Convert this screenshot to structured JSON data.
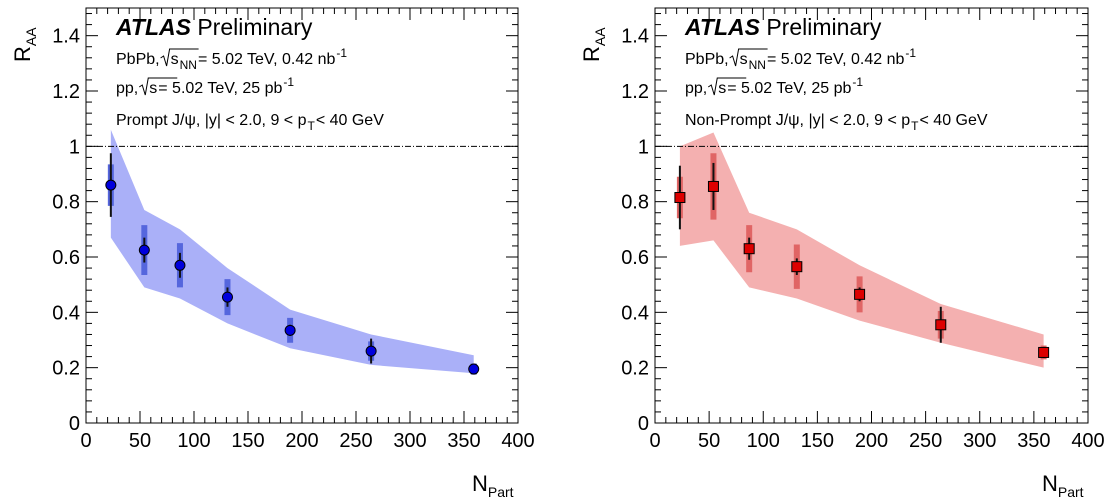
{
  "chart_data": [
    {
      "type": "scatter",
      "brand": "ATLAS",
      "title": "Preliminary",
      "xlabel": "N",
      "xlabel_sub": "Part",
      "ylabel": "R",
      "ylabel_sub": "AA",
      "xlim": [
        0,
        400
      ],
      "ylim": [
        0,
        1.5
      ],
      "xticks": [
        0,
        50,
        100,
        150,
        200,
        250,
        300,
        350,
        400
      ],
      "yticks": [
        0,
        0.2,
        0.4,
        0.6,
        0.8,
        1,
        1.2,
        1.4
      ],
      "ytick_labels": [
        "0",
        "0.2",
        "0.4",
        "0.6",
        "0.8",
        "1",
        "1.2",
        "1.4"
      ],
      "reference_line": 1,
      "annotations": [
        [
          {
            "t": "PbPb, "
          },
          {
            "t": "s",
            "sqrt": true
          },
          {
            "t": "NN",
            "sub": true
          },
          {
            "t": " = 5.02 TeV, 0.42 nb"
          },
          {
            "t": "-1",
            "sup": true
          }
        ],
        [
          {
            "t": "pp, "
          },
          {
            "t": "s",
            "sqrt": true
          },
          {
            "t": " = 5.02 TeV, 25 pb"
          },
          {
            "t": "-1",
            "sup": true
          }
        ],
        [
          {
            "t": "Prompt J/ψ, |y| < 2.0, 9 < p"
          },
          {
            "t": "T",
            "sub": true
          },
          {
            "t": " < 40 GeV"
          }
        ]
      ],
      "marker": "circle",
      "color": "#0000dd",
      "syst_color": "#5566dd",
      "band_color": "#aab0f8",
      "series": [
        {
          "x": [
            23,
            54,
            87,
            131,
            189,
            264,
            359
          ],
          "y": [
            0.86,
            0.625,
            0.57,
            0.455,
            0.335,
            0.26,
            0.195
          ],
          "stat_err": [
            0.115,
            0.045,
            0.045,
            0.035,
            0.02,
            0.045,
            0.02
          ],
          "syst_err": [
            0.075,
            0.09,
            0.08,
            0.065,
            0.045,
            0.035,
            0.02
          ]
        }
      ],
      "band": {
        "x": [
          23,
          54,
          87,
          131,
          189,
          264,
          359
        ],
        "lower": [
          0.67,
          0.49,
          0.45,
          0.36,
          0.27,
          0.21,
          0.18
        ],
        "upper": [
          1.06,
          0.77,
          0.7,
          0.56,
          0.41,
          0.32,
          0.245
        ]
      }
    },
    {
      "type": "scatter",
      "brand": "ATLAS",
      "title": "Preliminary",
      "xlabel": "N",
      "xlabel_sub": "Part",
      "ylabel": "R",
      "ylabel_sub": "AA",
      "xlim": [
        0,
        400
      ],
      "ylim": [
        0,
        1.5
      ],
      "xticks": [
        0,
        50,
        100,
        150,
        200,
        250,
        300,
        350,
        400
      ],
      "yticks": [
        0,
        0.2,
        0.4,
        0.6,
        0.8,
        1,
        1.2,
        1.4
      ],
      "ytick_labels": [
        "0",
        "0.2",
        "0.4",
        "0.6",
        "0.8",
        "1",
        "1.2",
        "1.4"
      ],
      "reference_line": 1,
      "annotations": [
        [
          {
            "t": "PbPb, "
          },
          {
            "t": "s",
            "sqrt": true
          },
          {
            "t": "NN",
            "sub": true
          },
          {
            "t": " = 5.02 TeV, 0.42 nb"
          },
          {
            "t": "-1",
            "sup": true
          }
        ],
        [
          {
            "t": "pp, "
          },
          {
            "t": "s",
            "sqrt": true
          },
          {
            "t": " = 5.02 TeV, 25 pb"
          },
          {
            "t": "-1",
            "sup": true
          }
        ],
        [
          {
            "t": "Non-Prompt J/ψ, |y| < 2.0, 9 < p"
          },
          {
            "t": "T",
            "sub": true
          },
          {
            "t": " < 40 GeV"
          }
        ]
      ],
      "marker": "square",
      "color": "#dd0000",
      "syst_color": "#e06565",
      "band_color": "#f4b0b0",
      "series": [
        {
          "x": [
            23,
            54,
            87,
            131,
            189,
            264,
            359
          ],
          "y": [
            0.815,
            0.855,
            0.63,
            0.565,
            0.465,
            0.355,
            0.255
          ],
          "stat_err": [
            0.115,
            0.085,
            0.04,
            0.03,
            0.025,
            0.065,
            0.02
          ],
          "syst_err": [
            0.075,
            0.12,
            0.085,
            0.08,
            0.065,
            0.05,
            0.025
          ]
        }
      ],
      "band": {
        "x": [
          23,
          54,
          87,
          131,
          189,
          264,
          359
        ],
        "lower": [
          0.64,
          0.66,
          0.49,
          0.45,
          0.37,
          0.29,
          0.2
        ],
        "upper": [
          1.0,
          1.05,
          0.76,
          0.7,
          0.57,
          0.43,
          0.32
        ]
      }
    }
  ]
}
